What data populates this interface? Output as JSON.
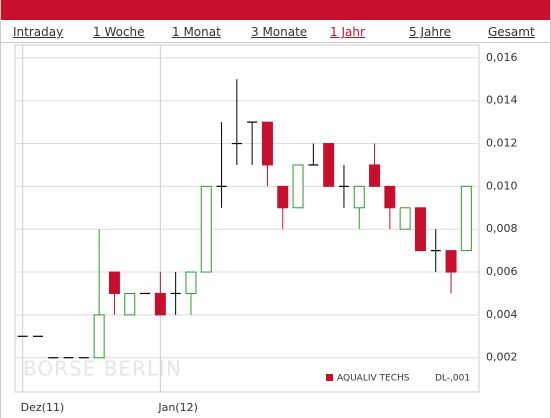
{
  "tabs": {
    "items": [
      "Intraday",
      "1 Woche",
      "1 Monat",
      "3 Monate",
      "1 Jahr",
      "5 Jahre",
      "Gesamt"
    ],
    "active": 4
  },
  "watermark": "BÖRSE BERLIN",
  "chart_data": {
    "type": "candlestick",
    "categories": [
      "Dez(11)",
      null,
      null,
      null,
      null,
      null,
      null,
      null,
      null,
      "Jan(12)",
      null,
      null,
      null,
      null,
      null,
      null,
      null,
      null,
      null,
      null,
      null,
      null,
      null,
      null,
      null,
      null,
      null,
      null,
      null,
      null
    ],
    "series": [
      {
        "name": "AQUALIV TECHS",
        "color": "#c8102e",
        "open": [
          0.003,
          0.003,
          0.002,
          0.002,
          0.002,
          0.002,
          0.006,
          0.004,
          0.005,
          0.005,
          0.005,
          0.005,
          0.006,
          0.01,
          0.012,
          0.013,
          0.013,
          0.01,
          0.009,
          0.011,
          0.012,
          0.01,
          0.009,
          0.011,
          0.01,
          0.008,
          0.009,
          0.007,
          0.007,
          0.007
        ],
        "high": [
          0.003,
          0.003,
          0.002,
          0.002,
          0.002,
          0.008,
          0.006,
          0.005,
          0.005,
          0.006,
          0.006,
          0.006,
          0.01,
          0.013,
          0.015,
          0.013,
          0.013,
          0.01,
          0.011,
          0.012,
          0.012,
          0.011,
          0.01,
          0.012,
          0.01,
          0.009,
          0.009,
          0.008,
          0.007,
          0.01
        ],
        "low": [
          0.003,
          0.003,
          0.002,
          0.002,
          0.002,
          0.002,
          0.004,
          0.004,
          0.005,
          0.004,
          0.004,
          0.004,
          0.006,
          0.009,
          0.011,
          0.011,
          0.01,
          0.008,
          0.009,
          0.011,
          0.01,
          0.009,
          0.008,
          0.01,
          0.008,
          0.008,
          0.007,
          0.006,
          0.005,
          0.007
        ],
        "close": [
          0.003,
          0.003,
          0.002,
          0.002,
          0.002,
          0.004,
          0.005,
          0.005,
          0.005,
          0.004,
          0.005,
          0.006,
          0.01,
          0.01,
          0.012,
          0.013,
          0.011,
          0.009,
          0.011,
          0.011,
          0.01,
          0.01,
          0.01,
          0.01,
          0.009,
          0.009,
          0.007,
          0.007,
          0.006,
          0.01
        ]
      }
    ],
    "up_color": "#2e9a2e",
    "down_color": "#c8102e",
    "flat_color": "#000000",
    "legend_note": "DL-,001",
    "ylim": [
      0.0004,
      0.0166
    ],
    "yticks": [
      {
        "value": 0.002,
        "label": "0,002"
      },
      {
        "value": 0.004,
        "label": "0,004"
      },
      {
        "value": 0.006,
        "label": "0,006"
      },
      {
        "value": 0.008,
        "label": "0,008"
      },
      {
        "value": 0.01,
        "label": "0,010"
      },
      {
        "value": 0.012,
        "label": "0,012"
      },
      {
        "value": 0.014,
        "label": "0,014"
      },
      {
        "value": 0.016,
        "label": "0,016"
      }
    ],
    "grid": true
  }
}
